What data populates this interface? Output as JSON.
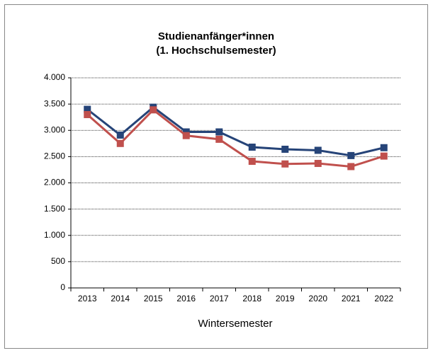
{
  "chart_data": {
    "type": "line",
    "title": "Studienanfänger*innen",
    "subtitle": "(1. Hochschulsemester)",
    "x_label": "Wintersemester",
    "categories": [
      "2013",
      "2014",
      "2015",
      "2016",
      "2017",
      "2018",
      "2019",
      "2020",
      "2021",
      "2022"
    ],
    "series": [
      {
        "color": "#264478",
        "values": [
          3400,
          2910,
          3440,
          2970,
          2970,
          2680,
          2640,
          2620,
          2520,
          2670
        ]
      },
      {
        "color": "#c0504d",
        "values": [
          3300,
          2750,
          3390,
          2900,
          2830,
          2410,
          2360,
          2370,
          2310,
          2510
        ]
      }
    ],
    "ylim": [
      0,
      4000
    ],
    "yticks": [
      0,
      500,
      {
        "value": 1000,
        "label": "1.000"
      },
      {
        "value": 1500,
        "label": "1.500"
      },
      {
        "value": 2000,
        "label": "2.000"
      },
      {
        "value": 2500,
        "label": "2.500"
      },
      {
        "value": 3000,
        "label": "3.000"
      },
      {
        "value": 3500,
        "label": "3.500"
      },
      {
        "value": 4000,
        "label": "4.000"
      }
    ],
    "grid": true
  }
}
